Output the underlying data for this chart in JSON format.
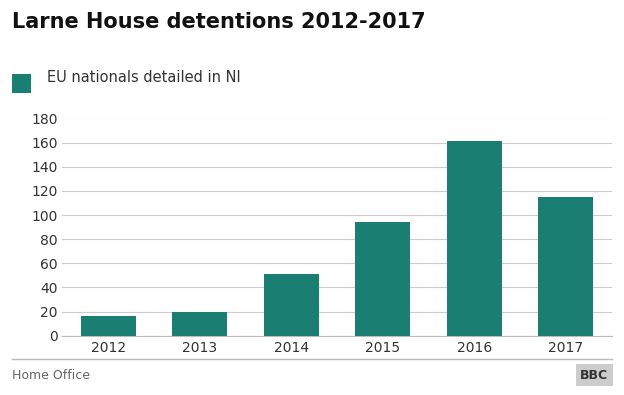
{
  "title": "Larne House detentions 2012-2017",
  "legend_label": "EU nationals detailed in NI",
  "categories": [
    "2012",
    "2013",
    "2014",
    "2015",
    "2016",
    "2017"
  ],
  "values": [
    16,
    20,
    51,
    94,
    161,
    115
  ],
  "bar_color": "#1a7f72",
  "ylim": [
    0,
    180
  ],
  "yticks": [
    0,
    20,
    40,
    60,
    80,
    100,
    120,
    140,
    160,
    180
  ],
  "title_fontsize": 15,
  "legend_fontsize": 10.5,
  "tick_fontsize": 10,
  "footer_left": "Home Office",
  "footer_right": "BBC",
  "background_color": "#ffffff",
  "grid_color": "#cccccc"
}
